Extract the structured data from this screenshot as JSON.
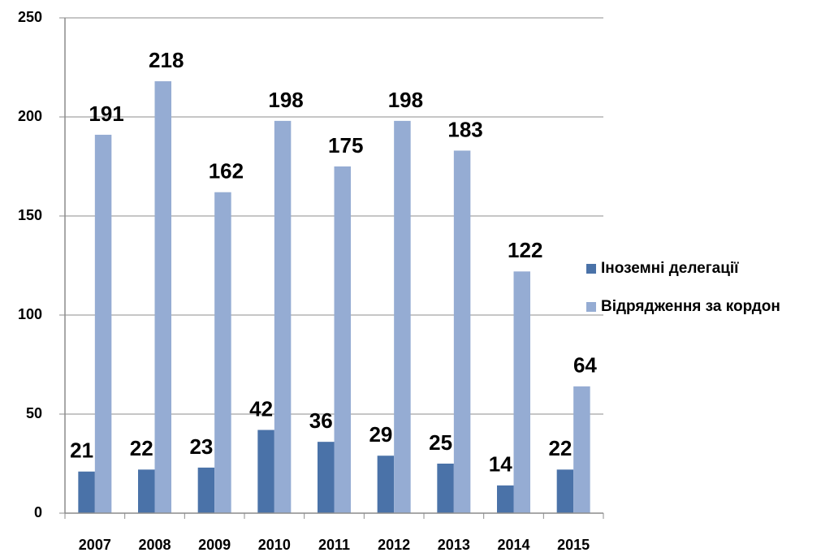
{
  "chart_data": {
    "type": "bar",
    "categories": [
      "2007",
      "2008",
      "2009",
      "2010",
      "2011",
      "2012",
      "2013",
      "2014",
      "2015"
    ],
    "series": [
      {
        "name": "Іноземні делегації",
        "color": "#4a72a8",
        "values": [
          21,
          22,
          23,
          42,
          36,
          29,
          25,
          14,
          22
        ]
      },
      {
        "name": "Відрядження за кордон",
        "color": "#95acd3",
        "values": [
          191,
          218,
          162,
          198,
          175,
          198,
          183,
          122,
          64
        ]
      }
    ],
    "ylim": [
      0,
      250
    ],
    "yticks": [
      0,
      50,
      100,
      150,
      200,
      250
    ],
    "grid": true,
    "legend": "right"
  }
}
